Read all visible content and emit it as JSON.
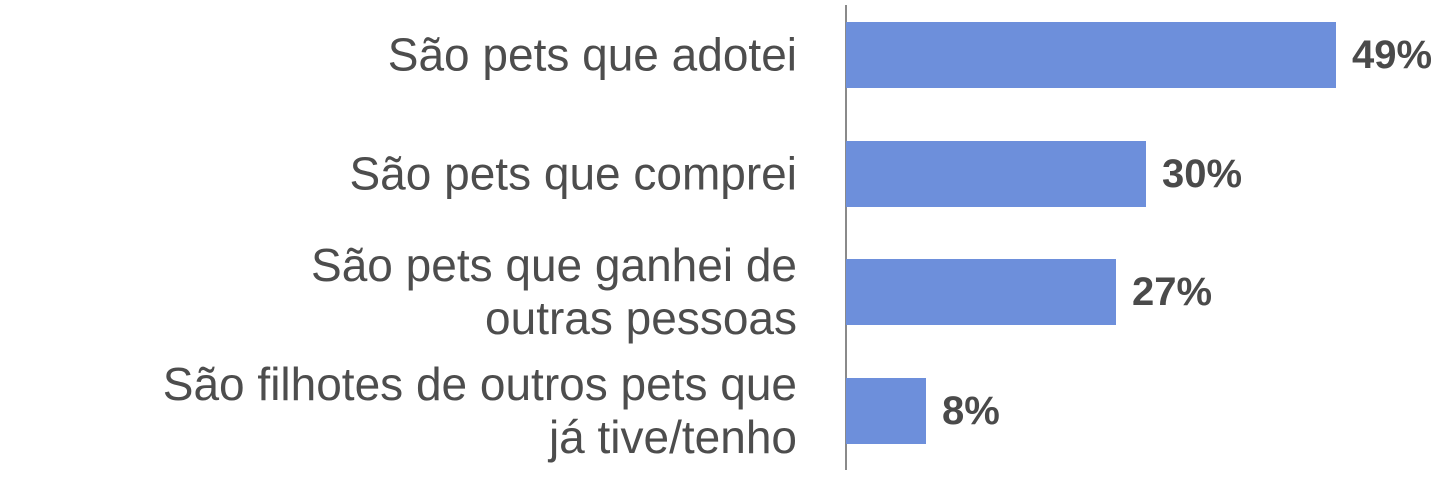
{
  "chart_data": {
    "type": "bar",
    "orientation": "horizontal",
    "categories": [
      "São pets que adotei",
      "São pets que comprei",
      "São pets que ganhei de\noutras pessoas",
      "São filhotes de outros pets que\njá tive/tenho"
    ],
    "values": [
      49,
      30,
      27,
      8
    ],
    "value_labels": [
      "49%",
      "30%",
      "27%",
      "8%"
    ],
    "color": "#6d8fdb"
  }
}
